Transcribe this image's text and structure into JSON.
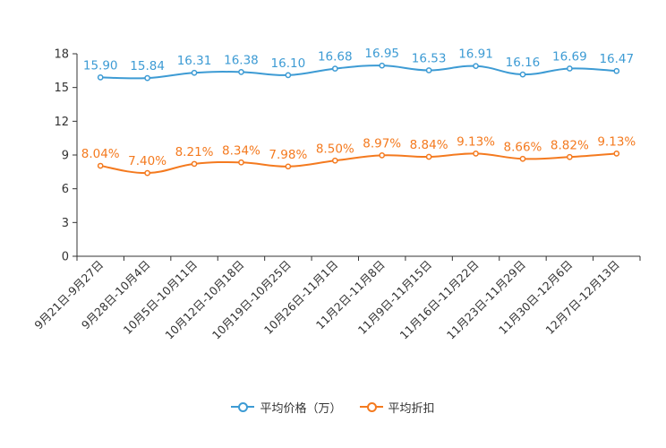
{
  "chart_data": {
    "type": "line",
    "title": "",
    "xlabel": "",
    "ylabel": "",
    "ylim": [
      0,
      18
    ],
    "yticks": [
      0,
      3,
      6,
      9,
      12,
      15,
      18
    ],
    "ytick_labels": [
      "0",
      "3",
      "6",
      "9",
      "12",
      "15",
      "18"
    ],
    "grid": false,
    "legend_position": "bottom-center",
    "categories": [
      "9月21日-9月27日",
      "9月28日-10月4日",
      "10月5日-10月11日",
      "10月12日-10月18日",
      "10月19日-10月25日",
      "10月26日-11月1日",
      "11月2日-11月8日",
      "11月9日-11月15日",
      "11月16日-11月22日",
      "11月23日-11月29日",
      "11月30日-12月6日",
      "12月7日-12月13日"
    ],
    "series": [
      {
        "name": "平均价格（万）",
        "color": "#3d9bd4",
        "values": [
          15.9,
          15.84,
          16.31,
          16.38,
          16.1,
          16.68,
          16.95,
          16.53,
          16.91,
          16.16,
          16.69,
          16.47
        ],
        "labels": [
          "15.90",
          "15.84",
          "16.31",
          "16.38",
          "16.10",
          "16.68",
          "16.95",
          "16.53",
          "16.91",
          "16.16",
          "16.69",
          "16.47"
        ]
      },
      {
        "name": "平均折扣",
        "color": "#f47a1f",
        "values": [
          8.04,
          7.4,
          8.21,
          8.34,
          7.98,
          8.5,
          8.97,
          8.84,
          9.13,
          8.66,
          8.82,
          9.13
        ],
        "labels": [
          "8.04%",
          "7.40%",
          "8.21%",
          "8.34%",
          "7.98%",
          "8.50%",
          "8.97%",
          "8.84%",
          "9.13%",
          "8.66%",
          "8.82%",
          "9.13%"
        ]
      }
    ]
  }
}
